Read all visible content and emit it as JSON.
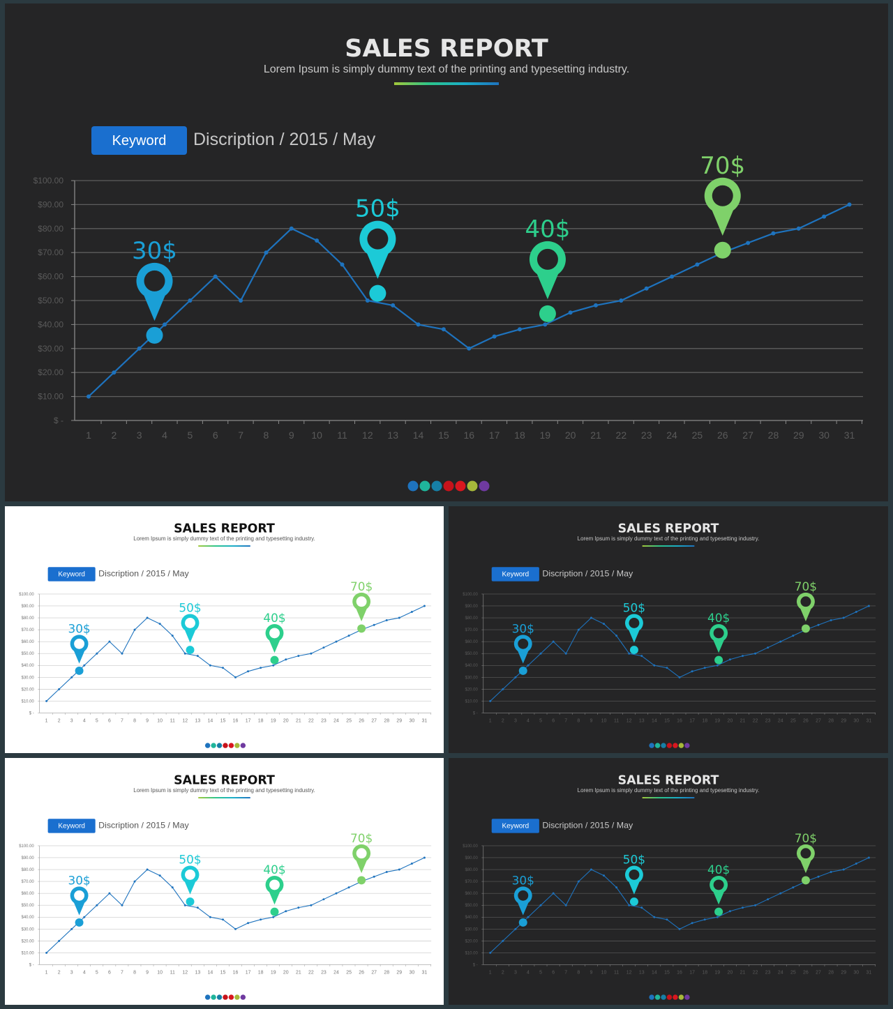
{
  "slide": {
    "title": "SALES REPORT",
    "subtitle": "Lorem Ipsum is simply dummy text of the printing and typesetting industry.",
    "keyword_label": "Keyword",
    "description": "Discription / 2015 / May"
  },
  "themes": {
    "dark": {
      "bg": "#252526",
      "title": "#e6e6e6",
      "text": "#c8c8c8",
      "grid": "#5e5e5e",
      "axis": "#8a8a8a",
      "tick": "#5a5a5a"
    },
    "light": {
      "bg": "#ffffff",
      "title": "#111111",
      "text": "#555555",
      "grid": "#c8c8c8",
      "axis": "#9a9a9a",
      "tick": "#777777"
    }
  },
  "colors": {
    "line": "#1e73be",
    "keyword_button": "#1a6fcf",
    "divider": [
      "#a3c93a",
      "#2cc58a",
      "#1aaec8",
      "#1e73be"
    ],
    "dots": [
      "#1e73be",
      "#1fb59b",
      "#167fa6",
      "#c6131b",
      "#d9171f",
      "#a6b83a",
      "#6f3aa0"
    ]
  },
  "slides": [
    {
      "id": "main",
      "theme": "dark"
    },
    {
      "id": "top-left",
      "theme": "light"
    },
    {
      "id": "top-right",
      "theme": "dark"
    },
    {
      "id": "bottom-left",
      "theme": "light"
    },
    {
      "id": "bottom-right",
      "theme": "dark"
    }
  ],
  "chart_data": {
    "type": "line",
    "x": [
      1,
      2,
      3,
      4,
      5,
      6,
      7,
      8,
      9,
      10,
      11,
      12,
      13,
      14,
      15,
      16,
      17,
      18,
      19,
      20,
      21,
      22,
      23,
      24,
      25,
      26,
      27,
      28,
      29,
      30,
      31
    ],
    "values": [
      10,
      20,
      30,
      40,
      50,
      60,
      50,
      70,
      80,
      75,
      65,
      50,
      48,
      40,
      38,
      30,
      35,
      38,
      40,
      45,
      48,
      50,
      55,
      60,
      65,
      70,
      74,
      78,
      80,
      85,
      90
    ],
    "ylim": [
      0,
      100
    ],
    "y_ticks": [
      0,
      10,
      20,
      30,
      40,
      50,
      60,
      70,
      80,
      90,
      100
    ],
    "y_tick_labels": [
      "$ -",
      "$10.00",
      "$20.00",
      "$30.00",
      "$40.00",
      "$50.00",
      "$60.00",
      "$70.00",
      "$80.00",
      "$90.00",
      "$100.00"
    ],
    "grid": true,
    "markers": [
      {
        "label": "30$",
        "x": 3.6,
        "y": 35.5,
        "color": "#1a9fd6",
        "icon": "map-pin-icon"
      },
      {
        "label": "50$",
        "x": 12.4,
        "y": 53,
        "color": "#1ccad7",
        "icon": "map-pin-icon"
      },
      {
        "label": "40$",
        "x": 19.1,
        "y": 44.5,
        "color": "#2dcf8c",
        "icon": "map-pin-icon"
      },
      {
        "label": "70$",
        "x": 26,
        "y": 71,
        "color": "#7fd16a",
        "icon": "map-pin-icon"
      }
    ]
  }
}
